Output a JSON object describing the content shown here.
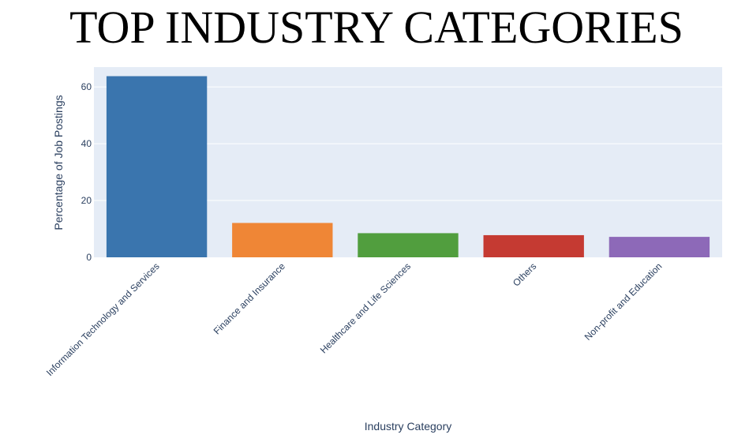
{
  "chart_data": {
    "type": "bar",
    "title": "TOP INDUSTRY CATEGORIES",
    "xlabel": "Industry Category",
    "ylabel": "Percentage of Job Postings",
    "categories": [
      "Information Technology and Services",
      "Finance and Insurance",
      "Healthcare and Life Sciences",
      "Others",
      "Non-profit and Education"
    ],
    "values": [
      63.8,
      12.1,
      8.5,
      7.8,
      7.2
    ],
    "colors": [
      "#3a75ae",
      "#ef8636",
      "#519e3e",
      "#c53a32",
      "#8d69b8"
    ],
    "ylim": [
      0,
      67
    ],
    "yticks": [
      0,
      20,
      40,
      60
    ],
    "grid": true,
    "plot_background": "#e5ecf6",
    "legend": "none"
  }
}
